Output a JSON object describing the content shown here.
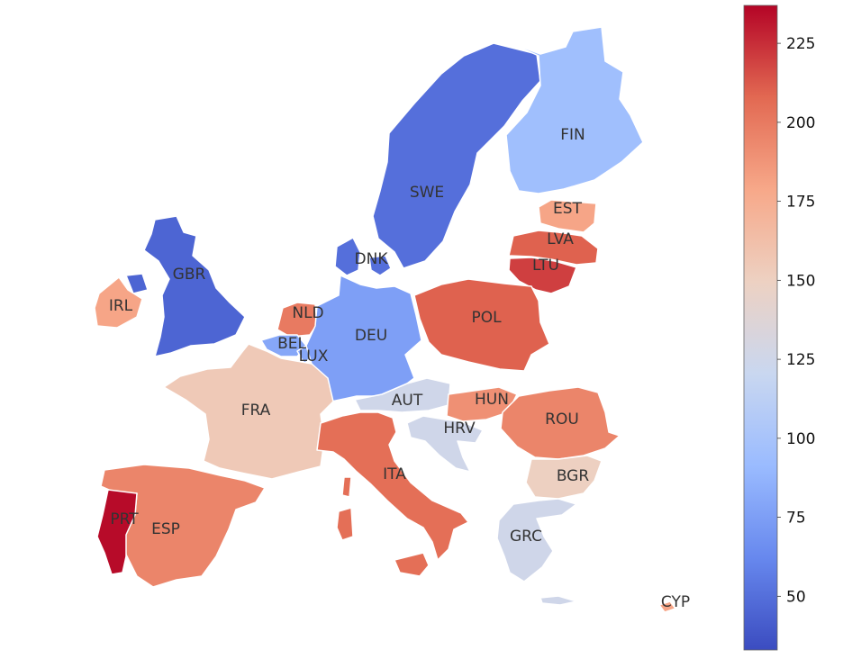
{
  "colorbar": {
    "min": 33,
    "max": 237,
    "ticks": [
      "50",
      "75",
      "100",
      "125",
      "150",
      "175",
      "200",
      "225"
    ],
    "colors": [
      "#3b4cc0",
      "#6788ee",
      "#9abbff",
      "#c9d7f0",
      "#edd1c2",
      "#f7a889",
      "#e26952",
      "#b40426"
    ]
  },
  "countries": [
    {
      "code": "SWE",
      "label": "SWE",
      "value": 50
    },
    {
      "code": "FIN",
      "label": "FIN",
      "value": 95
    },
    {
      "code": "EST",
      "label": "EST",
      "value": 180
    },
    {
      "code": "LVA",
      "label": "LVA",
      "value": 210
    },
    {
      "code": "LTU",
      "label": "LTU",
      "value": 220
    },
    {
      "code": "DNK",
      "label": "DNK",
      "value": 50
    },
    {
      "code": "GBR",
      "label": "GBR",
      "value": 45
    },
    {
      "code": "IRL",
      "label": "IRL",
      "value": 180
    },
    {
      "code": "NLD",
      "label": "NLD",
      "value": 200
    },
    {
      "code": "BEL",
      "label": "BEL",
      "value": 80
    },
    {
      "code": "LUX",
      "label": "LUX",
      "value": 80
    },
    {
      "code": "DEU",
      "label": "DEU",
      "value": 75
    },
    {
      "code": "POL",
      "label": "POL",
      "value": 210
    },
    {
      "code": "FRA",
      "label": "FRA",
      "value": 155
    },
    {
      "code": "AUT",
      "label": "AUT",
      "value": 125
    },
    {
      "code": "HUN",
      "label": "HUN",
      "value": 190
    },
    {
      "code": "HRV",
      "label": "HRV",
      "value": 125
    },
    {
      "code": "ROU",
      "label": "ROU",
      "value": 195
    },
    {
      "code": "BGR",
      "label": "BGR",
      "value": 150
    },
    {
      "code": "ITA",
      "label": "ITA",
      "value": 205
    },
    {
      "code": "ESP",
      "label": "ESP",
      "value": 195
    },
    {
      "code": "PRT",
      "label": "PRT",
      "value": 235
    },
    {
      "code": "GRC",
      "label": "GRC",
      "value": 125
    },
    {
      "code": "CYP",
      "label": "CYP",
      "value": 180
    }
  ]
}
